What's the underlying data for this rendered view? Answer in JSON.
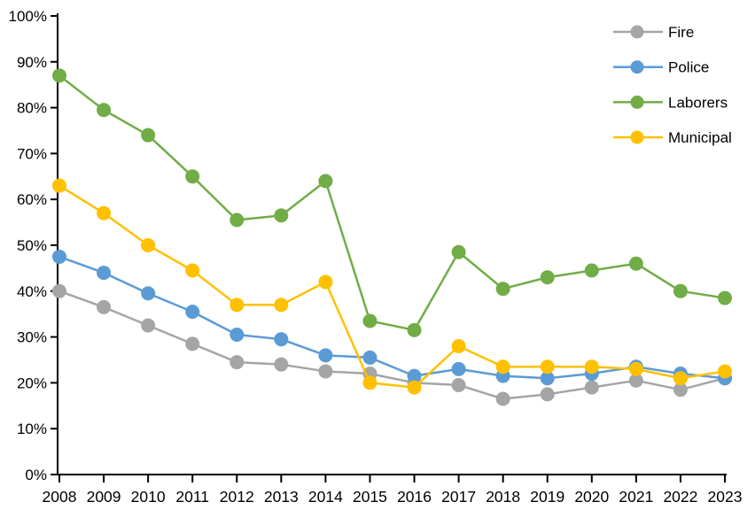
{
  "chart_data": {
    "type": "line",
    "title": "",
    "xlabel": "",
    "ylabel": "",
    "categories": [
      "2008",
      "2009",
      "2010",
      "2011",
      "2012",
      "2013",
      "2014",
      "2015",
      "2016",
      "2017",
      "2018",
      "2019",
      "2020",
      "2021",
      "2022",
      "2023"
    ],
    "ylim": [
      0,
      100
    ],
    "ytick_step": 10,
    "ytick_suffix": "%",
    "grid": false,
    "legend_position": "top-right",
    "axis_color": "#000000",
    "series": [
      {
        "name": "Fire",
        "color": "#A5A5A5",
        "values": [
          40,
          36.5,
          32.5,
          28.5,
          24.5,
          24,
          22.5,
          22,
          20,
          19.5,
          16.5,
          17.5,
          19,
          20.5,
          18.5,
          21
        ]
      },
      {
        "name": "Police",
        "color": "#5B9BD5",
        "values": [
          47.5,
          44,
          39.5,
          35.5,
          30.5,
          29.5,
          26,
          25.5,
          21.5,
          23,
          21.5,
          21,
          22,
          23.5,
          22,
          21
        ]
      },
      {
        "name": "Laborers",
        "color": "#70AD47",
        "values": [
          87,
          79.5,
          74,
          65,
          55.5,
          56.5,
          64,
          33.5,
          31.5,
          48.5,
          40.5,
          43,
          44.5,
          46,
          40,
          38.5
        ]
      },
      {
        "name": "Municipal",
        "color": "#FFC000",
        "values": [
          63,
          57,
          50,
          44.5,
          37,
          37,
          42,
          20,
          19,
          28,
          23.5,
          23.5,
          23.5,
          23,
          21,
          22.5
        ]
      }
    ]
  }
}
